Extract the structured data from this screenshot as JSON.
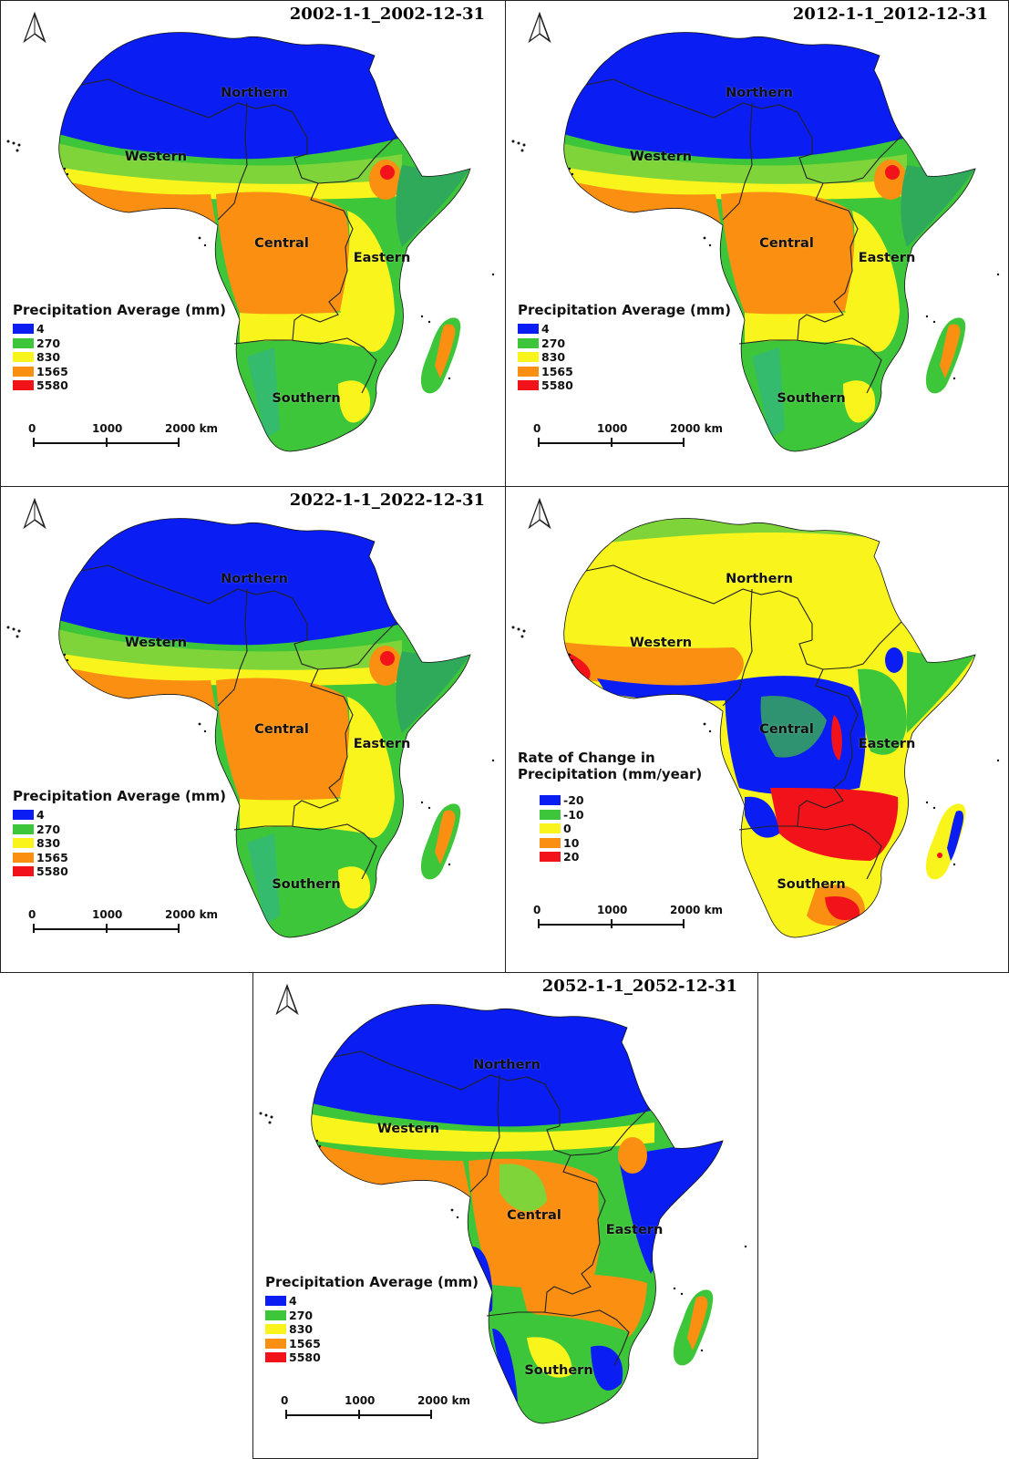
{
  "panels": [
    {
      "id": "p1",
      "title": "2002-1-1_2002-12-31",
      "kind": "average",
      "legend": {
        "title": "Precipitation Average (mm)",
        "entries": [
          {
            "label": "4",
            "color": "#0a1df2"
          },
          {
            "label": "270",
            "color": "#3ec63a"
          },
          {
            "label": "830",
            "color": "#f9f51c"
          },
          {
            "label": "1565",
            "color": "#fb8f12"
          },
          {
            "label": "5580",
            "color": "#f2121a"
          }
        ]
      },
      "scale": {
        "labels": [
          "0",
          "1000",
          "2000 km"
        ]
      },
      "regions": [
        "Northern",
        "Western",
        "Central",
        "Eastern",
        "Southern"
      ]
    },
    {
      "id": "p2",
      "title": "2012-1-1_2012-12-31",
      "kind": "average",
      "legend": {
        "title": "Precipitation Average (mm)",
        "entries": [
          {
            "label": "4",
            "color": "#0a1df2"
          },
          {
            "label": "270",
            "color": "#3ec63a"
          },
          {
            "label": "830",
            "color": "#f9f51c"
          },
          {
            "label": "1565",
            "color": "#fb8f12"
          },
          {
            "label": "5580",
            "color": "#f2121a"
          }
        ]
      },
      "scale": {
        "labels": [
          "0",
          "1000",
          "2000 km"
        ]
      },
      "regions": [
        "Northern",
        "Western",
        "Central",
        "Eastern",
        "Southern"
      ]
    },
    {
      "id": "p3",
      "title": "2022-1-1_2022-12-31",
      "kind": "average",
      "legend": {
        "title": "Precipitation Average (mm)",
        "entries": [
          {
            "label": "4",
            "color": "#0a1df2"
          },
          {
            "label": "270",
            "color": "#3ec63a"
          },
          {
            "label": "830",
            "color": "#f9f51c"
          },
          {
            "label": "1565",
            "color": "#fb8f12"
          },
          {
            "label": "5580",
            "color": "#f2121a"
          }
        ]
      },
      "scale": {
        "labels": [
          "0",
          "1000",
          "2000 km"
        ]
      },
      "regions": [
        "Northern",
        "Western",
        "Central",
        "Eastern",
        "Southern"
      ]
    },
    {
      "id": "p4",
      "title": "",
      "kind": "change",
      "legend": {
        "title_line1": "Rate of Change in",
        "title_line2": "Precipitation (mm/year)",
        "entries": [
          {
            "label": "-20",
            "color": "#0a1df2"
          },
          {
            "label": "-10",
            "color": "#3ec63a"
          },
          {
            "label": "0",
            "color": "#f9f51c"
          },
          {
            "label": "10",
            "color": "#fb8f12"
          },
          {
            "label": "20",
            "color": "#f2121a"
          }
        ]
      },
      "scale": {
        "labels": [
          "0",
          "1000",
          "2000 km"
        ]
      },
      "regions": [
        "Northern",
        "Western",
        "Central",
        "Eastern",
        "Southern"
      ]
    },
    {
      "id": "p5",
      "title": "2052-1-1_2052-12-31",
      "kind": "average",
      "legend": {
        "title": "Precipitation Average (mm)",
        "entries": [
          {
            "label": "4",
            "color": "#0a1df2"
          },
          {
            "label": "270",
            "color": "#3ec63a"
          },
          {
            "label": "830",
            "color": "#f9f51c"
          },
          {
            "label": "1565",
            "color": "#fb8f12"
          },
          {
            "label": "5580",
            "color": "#f2121a"
          }
        ]
      },
      "scale": {
        "labels": [
          "0",
          "1000",
          "2000 km"
        ]
      },
      "regions": [
        "Northern",
        "Western",
        "Central",
        "Eastern",
        "Southern"
      ]
    }
  ]
}
